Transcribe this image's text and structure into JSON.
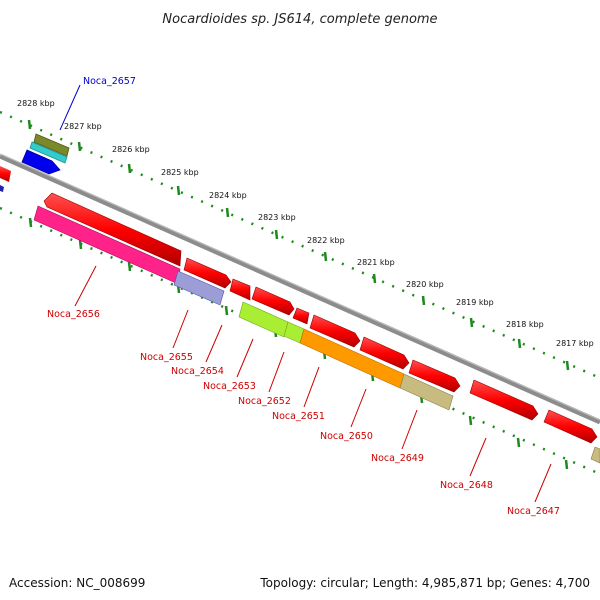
{
  "title": "Nocardioides sp. JS614, complete genome",
  "footer": {
    "accession": "Accession: NC_008699",
    "summary": "Topology: circular; Length: 4,985,871 bp; Genes: 4,700"
  },
  "ruler_ticks": [
    "2828 kbp",
    "2827 kbp",
    "2826 kbp",
    "2825 kbp",
    "2824 kbp",
    "2823 kbp",
    "2822 kbp",
    "2821 kbp",
    "2820 kbp",
    "2819 kbp",
    "2818 kbp",
    "2817 kbp"
  ],
  "genes": [
    {
      "name": "Noca_2657",
      "color": "#0000cc"
    },
    {
      "name": "Noca_2656",
      "color": "#cc0000"
    },
    {
      "name": "Noca_2655",
      "color": "#cc0000"
    },
    {
      "name": "Noca_2654",
      "color": "#cc0000"
    },
    {
      "name": "Noca_2653",
      "color": "#cc0000"
    },
    {
      "name": "Noca_2652",
      "color": "#cc0000"
    },
    {
      "name": "Noca_2651",
      "color": "#cc0000"
    },
    {
      "name": "Noca_2650",
      "color": "#cc0000"
    },
    {
      "name": "Noca_2649",
      "color": "#cc0000"
    },
    {
      "name": "Noca_2648",
      "color": "#cc0000"
    },
    {
      "name": "Noca_2647",
      "color": "#cc0000"
    }
  ],
  "colors": {
    "backbone": "#8c8c8c",
    "tick": "#1e8a1e",
    "cds": "#ff0000",
    "rna": "#ff2288",
    "lime": "#aaee33",
    "orange": "#ff9900",
    "khaki": "#c8bb80",
    "blue": "#0000ee",
    "cyan": "#33cccc",
    "olive": "#7a8a2a",
    "periwinkle": "#7777cc"
  }
}
